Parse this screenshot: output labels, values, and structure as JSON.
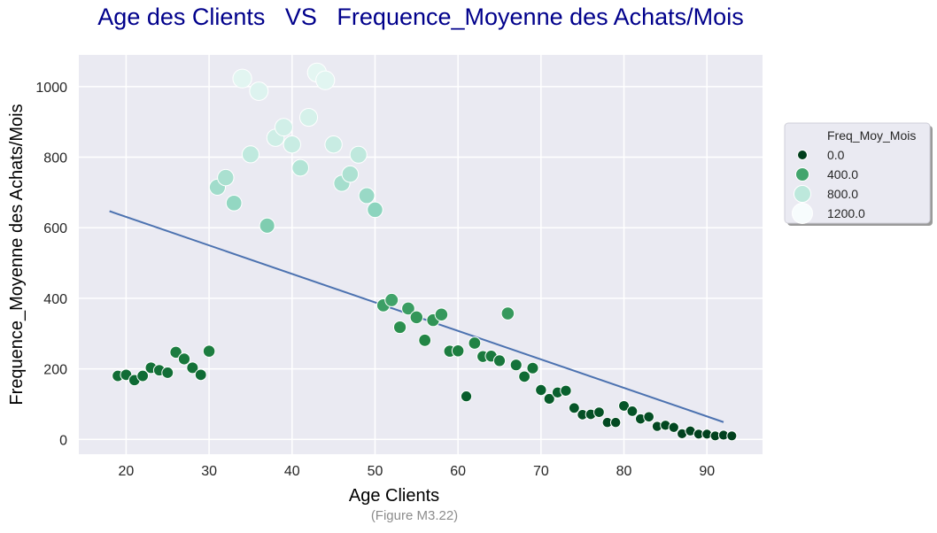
{
  "page": {
    "caption": "(Figure M3.22)"
  },
  "chart_data": {
    "type": "scatter",
    "title": "Age des Clients   VS   Frequence_Moyenne des Achats/Mois",
    "xlabel": "Age Clients",
    "ylabel": "Frequence_Moyenne des Achats/Mois",
    "xlim": [
      14.3,
      96.7
    ],
    "ylim": [
      -42,
      1090
    ],
    "xticks": [
      20,
      30,
      40,
      50,
      60,
      70,
      80,
      90
    ],
    "yticks": [
      0,
      200,
      400,
      600,
      800,
      1000
    ],
    "grid": true,
    "background": "#eaeaf2",
    "title_color": "#00008b",
    "hue_variable": "Freq_Moy_Mois",
    "size_variable": "Freq_Moy_Mois",
    "legend": {
      "title": "Freq_Moy_Mois",
      "placement": "right",
      "entries": [
        {
          "label": "0.0",
          "value": 0
        },
        {
          "label": "400.0",
          "value": 400
        },
        {
          "label": "800.0",
          "value": 800
        },
        {
          "label": "1200.0",
          "value": 1200
        }
      ]
    },
    "regression_line": {
      "color": "#4c72b0",
      "points": [
        [
          18,
          647
        ],
        [
          92,
          49
        ]
      ]
    },
    "points": [
      {
        "x": 19,
        "y": 180
      },
      {
        "x": 20,
        "y": 183
      },
      {
        "x": 21,
        "y": 168
      },
      {
        "x": 22,
        "y": 180
      },
      {
        "x": 23,
        "y": 203
      },
      {
        "x": 24,
        "y": 196
      },
      {
        "x": 25,
        "y": 189
      },
      {
        "x": 26,
        "y": 247
      },
      {
        "x": 27,
        "y": 228
      },
      {
        "x": 28,
        "y": 203
      },
      {
        "x": 29,
        "y": 183
      },
      {
        "x": 30,
        "y": 250
      },
      {
        "x": 31,
        "y": 715
      },
      {
        "x": 32,
        "y": 742
      },
      {
        "x": 33,
        "y": 670
      },
      {
        "x": 34,
        "y": 1023
      },
      {
        "x": 35,
        "y": 808
      },
      {
        "x": 36,
        "y": 987
      },
      {
        "x": 37,
        "y": 606
      },
      {
        "x": 38,
        "y": 855
      },
      {
        "x": 39,
        "y": 885
      },
      {
        "x": 40,
        "y": 836
      },
      {
        "x": 41,
        "y": 770
      },
      {
        "x": 42,
        "y": 913
      },
      {
        "x": 43,
        "y": 1040
      },
      {
        "x": 44,
        "y": 1018
      },
      {
        "x": 45,
        "y": 836
      },
      {
        "x": 46,
        "y": 726
      },
      {
        "x": 47,
        "y": 752
      },
      {
        "x": 48,
        "y": 807
      },
      {
        "x": 49,
        "y": 691
      },
      {
        "x": 50,
        "y": 651
      },
      {
        "x": 51,
        "y": 380
      },
      {
        "x": 52,
        "y": 395
      },
      {
        "x": 53,
        "y": 318
      },
      {
        "x": 54,
        "y": 371
      },
      {
        "x": 55,
        "y": 346
      },
      {
        "x": 56,
        "y": 281
      },
      {
        "x": 57,
        "y": 338
      },
      {
        "x": 58,
        "y": 354
      },
      {
        "x": 59,
        "y": 250
      },
      {
        "x": 60,
        "y": 251
      },
      {
        "x": 61,
        "y": 122
      },
      {
        "x": 62,
        "y": 273
      },
      {
        "x": 63,
        "y": 235
      },
      {
        "x": 64,
        "y": 236
      },
      {
        "x": 65,
        "y": 223
      },
      {
        "x": 66,
        "y": 357
      },
      {
        "x": 67,
        "y": 211
      },
      {
        "x": 68,
        "y": 178
      },
      {
        "x": 69,
        "y": 202
      },
      {
        "x": 70,
        "y": 140
      },
      {
        "x": 71,
        "y": 115
      },
      {
        "x": 72,
        "y": 133
      },
      {
        "x": 73,
        "y": 138
      },
      {
        "x": 74,
        "y": 89
      },
      {
        "x": 75,
        "y": 70
      },
      {
        "x": 76,
        "y": 71
      },
      {
        "x": 77,
        "y": 77
      },
      {
        "x": 78,
        "y": 48
      },
      {
        "x": 79,
        "y": 48
      },
      {
        "x": 80,
        "y": 95
      },
      {
        "x": 81,
        "y": 80
      },
      {
        "x": 82,
        "y": 58
      },
      {
        "x": 83,
        "y": 64
      },
      {
        "x": 84,
        "y": 37
      },
      {
        "x": 85,
        "y": 40
      },
      {
        "x": 86,
        "y": 34
      },
      {
        "x": 87,
        "y": 16
      },
      {
        "x": 88,
        "y": 24
      },
      {
        "x": 89,
        "y": 15
      },
      {
        "x": 90,
        "y": 15
      },
      {
        "x": 91,
        "y": 10
      },
      {
        "x": 92,
        "y": 12
      },
      {
        "x": 93,
        "y": 10
      }
    ]
  }
}
